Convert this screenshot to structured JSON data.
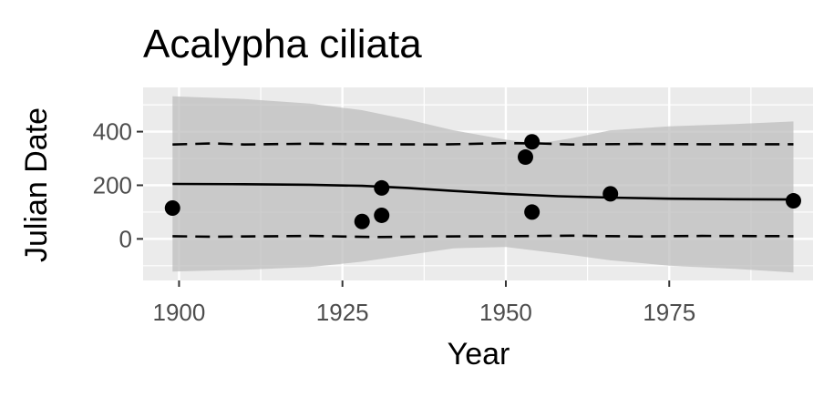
{
  "chart_data": {
    "type": "scatter",
    "title": "Acalypha ciliata",
    "xlabel": "Year",
    "ylabel": "Julian Date",
    "xlim": [
      1894.5,
      1997.0
    ],
    "ylim": [
      -155,
      565
    ],
    "x_ticks": [
      1900,
      1925,
      1950,
      1975
    ],
    "x_tick_labels": [
      "1900",
      "1925",
      "1950",
      "1975"
    ],
    "x_minor_ticks": [
      1912.5,
      1937.5,
      1962.5,
      1987.5
    ],
    "y_ticks": [
      0,
      200,
      400
    ],
    "y_tick_labels": [
      "0",
      "200",
      "400"
    ],
    "y_minor_ticks": [
      -100,
      100,
      300,
      500
    ],
    "grid": true,
    "legend": "none",
    "colors": {
      "panel_background": "#ebebeb",
      "grid": "#ffffff",
      "ribbon": "#bdbdbd",
      "points": "#000000",
      "lines": "#000000",
      "tick_text": "#4d4d4d"
    },
    "points": [
      {
        "x": 1899,
        "y": 115
      },
      {
        "x": 1928,
        "y": 65
      },
      {
        "x": 1931,
        "y": 88
      },
      {
        "x": 1931,
        "y": 190
      },
      {
        "x": 1953,
        "y": 305
      },
      {
        "x": 1954,
        "y": 362
      },
      {
        "x": 1954,
        "y": 100
      },
      {
        "x": 1966,
        "y": 168
      },
      {
        "x": 1994,
        "y": 142
      }
    ],
    "fit_line": {
      "x": [
        1899,
        1910,
        1920,
        1928,
        1935,
        1942,
        1950,
        1958,
        1966,
        1975,
        1985,
        1994
      ],
      "y": [
        205,
        204,
        202,
        198,
        190,
        179,
        168,
        159,
        154,
        150,
        148,
        147
      ]
    },
    "confidence_band": {
      "x": [
        1899,
        1910,
        1920,
        1928,
        1935,
        1942,
        1950,
        1955,
        1960,
        1966,
        1975,
        1985,
        1994
      ],
      "upper": [
        532,
        522,
        505,
        480,
        445,
        405,
        370,
        355,
        375,
        405,
        420,
        428,
        438
      ],
      "lower": [
        -122,
        -115,
        -105,
        -85,
        -60,
        -35,
        -30,
        -45,
        -60,
        -80,
        -100,
        -112,
        -125
      ]
    },
    "dashed_upper": {
      "x": [
        1899,
        1905,
        1910,
        1920,
        1930,
        1940,
        1950,
        1955,
        1960,
        1970,
        1980,
        1994
      ],
      "y": [
        352,
        356,
        352,
        355,
        353,
        352,
        357,
        356,
        352,
        354,
        353,
        353
      ]
    },
    "dashed_lower": {
      "x": [
        1899,
        1905,
        1910,
        1920,
        1930,
        1940,
        1950,
        1960,
        1970,
        1980,
        1994
      ],
      "y": [
        10,
        8,
        9,
        11,
        7,
        9,
        10,
        12,
        9,
        11,
        10
      ]
    }
  }
}
